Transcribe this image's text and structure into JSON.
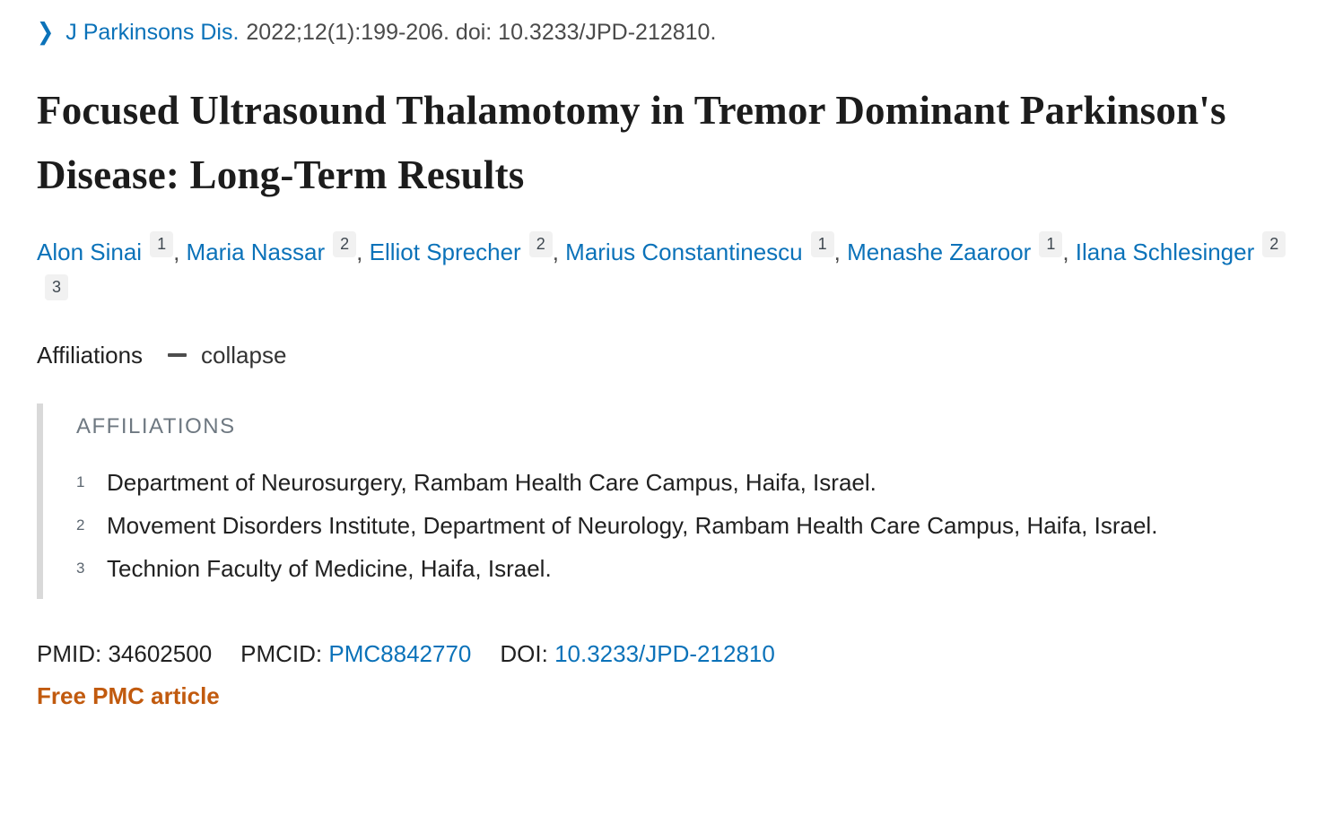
{
  "citation": {
    "journal_link": "J Parkinsons Dis.",
    "details": "2022;12(1):199-206. doi: 10.3233/JPD-212810.",
    "chevron_icon": "chevron-right"
  },
  "title": "Focused Ultrasound Thalamotomy in Tremor Dominant Parkinson's Disease: Long-Term Results",
  "authors": [
    {
      "name": "Alon Sinai",
      "affiliation_numbers": [
        "1"
      ]
    },
    {
      "name": "Maria Nassar",
      "affiliation_numbers": [
        "2"
      ]
    },
    {
      "name": "Elliot Sprecher",
      "affiliation_numbers": [
        "2"
      ]
    },
    {
      "name": "Marius Constantinescu",
      "affiliation_numbers": [
        "1"
      ]
    },
    {
      "name": "Menashe Zaaroor",
      "affiliation_numbers": [
        "1"
      ]
    },
    {
      "name": "Ilana Schlesinger",
      "affiliation_numbers": [
        "2",
        "3"
      ]
    }
  ],
  "affiliations_toggle": {
    "label": "Affiliations",
    "collapse_label": "collapse",
    "icon": "minus"
  },
  "affiliations": {
    "heading": "AFFILIATIONS",
    "items": [
      {
        "number": "1",
        "text": "Department of Neurosurgery, Rambam Health Care Campus, Haifa, Israel."
      },
      {
        "number": "2",
        "text": "Movement Disorders Institute, Department of Neurology, Rambam Health Care Campus, Haifa, Israel."
      },
      {
        "number": "3",
        "text": "Technion Faculty of Medicine, Haifa, Israel."
      }
    ]
  },
  "identifiers": {
    "pmid_label": "PMID:",
    "pmid_value": "34602500",
    "pmcid_label": "PMCID:",
    "pmcid_value": "PMC8842770",
    "doi_label": "DOI:",
    "doi_value": "10.3233/JPD-212810"
  },
  "free_pmc_label": "Free PMC article",
  "colors": {
    "link_blue": "#0b72b9",
    "free_pmc_orange": "#c15a0e",
    "superscript_bg": "#f1f1f1",
    "affiliation_bar_gray": "#d9d9d9",
    "affiliation_heading_gray": "#6e7881",
    "body_text": "#212121",
    "citation_gray": "#4a4a4a"
  }
}
